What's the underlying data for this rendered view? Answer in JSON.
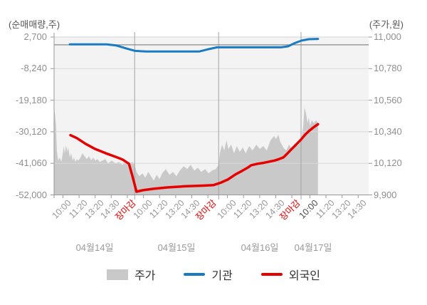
{
  "chart_data": {
    "type": "mixed",
    "title": "",
    "left_axis": {
      "title": "(순매매량,주)",
      "unit": "주",
      "max": 2700,
      "min": -52000,
      "ticks": [
        "2,700",
        "-8,240",
        "-19,180",
        "-30,120",
        "-41,060",
        "-52,000"
      ],
      "tick_values": [
        2700,
        -8240,
        -19180,
        -30120,
        -41060,
        -52000
      ],
      "zero_line": true
    },
    "right_axis": {
      "title": "(주가,원)",
      "unit": "원",
      "max": 11000,
      "min": 9900,
      "ticks": [
        "11,000",
        "10,780",
        "10,560",
        "10,340",
        "10,120",
        "9,900"
      ],
      "tick_values": [
        11000,
        10780,
        10560,
        10340,
        10120,
        9900
      ]
    },
    "x_axis": {
      "days": [
        {
          "label": "04월14일",
          "times": [
            "10:00",
            "11:20",
            "13:20",
            "14:30",
            "장마감"
          ]
        },
        {
          "label": "04월15일",
          "times": [
            "10:00",
            "11:20",
            "13:20",
            "14:30",
            "장마감"
          ]
        },
        {
          "label": "04월16일",
          "times": [
            "10:00",
            "11:20",
            "13:20",
            "14:30",
            "장마감"
          ]
        },
        {
          "label": "04월17일",
          "times": [
            "10:00",
            "11:20",
            "13:20",
            "14:30"
          ],
          "emphasized_time_index": 0
        }
      ],
      "close_time_label": "장마감",
      "time_label_color": "#979797",
      "close_label_color": "#e60000",
      "emphasized_label_color": "#4a4a4a"
    },
    "day_boundaries": [
      0.256,
      0.523,
      0.785
    ],
    "data_end": 0.839,
    "grid": true,
    "legend_position": "bottom",
    "series": [
      {
        "name": "주가",
        "type": "area",
        "axis": "right",
        "color": "#c9c9c9",
        "points": [
          [
            0.0,
            10500
          ],
          [
            0.003,
            10460
          ],
          [
            0.006,
            10380
          ],
          [
            0.009,
            10200
          ],
          [
            0.013,
            10140
          ],
          [
            0.018,
            10160
          ],
          [
            0.023,
            10130
          ],
          [
            0.027,
            10180
          ],
          [
            0.031,
            10240
          ],
          [
            0.034,
            10190
          ],
          [
            0.038,
            10245
          ],
          [
            0.042,
            10200
          ],
          [
            0.045,
            10230
          ],
          [
            0.05,
            10160
          ],
          [
            0.054,
            10190
          ],
          [
            0.059,
            10140
          ],
          [
            0.063,
            10160
          ],
          [
            0.068,
            10130
          ],
          [
            0.072,
            10150
          ],
          [
            0.077,
            10140
          ],
          [
            0.084,
            10160
          ],
          [
            0.09,
            10190
          ],
          [
            0.097,
            10170
          ],
          [
            0.104,
            10150
          ],
          [
            0.111,
            10170
          ],
          [
            0.118,
            10140
          ],
          [
            0.124,
            10160
          ],
          [
            0.131,
            10140
          ],
          [
            0.138,
            10150
          ],
          [
            0.145,
            10130
          ],
          [
            0.154,
            10140
          ],
          [
            0.163,
            10150
          ],
          [
            0.172,
            10120
          ],
          [
            0.183,
            10140
          ],
          [
            0.195,
            10120
          ],
          [
            0.206,
            10130
          ],
          [
            0.217,
            10110
          ],
          [
            0.229,
            10130
          ],
          [
            0.24,
            10120
          ],
          [
            0.249,
            10130
          ],
          [
            0.256,
            10110
          ],
          [
            0.262,
            10060
          ],
          [
            0.271,
            10030
          ],
          [
            0.281,
            10050
          ],
          [
            0.29,
            10020
          ],
          [
            0.299,
            10060
          ],
          [
            0.308,
            10030
          ],
          [
            0.317,
            10000
          ],
          [
            0.326,
            10040
          ],
          [
            0.335,
            10010
          ],
          [
            0.344,
            10050
          ],
          [
            0.355,
            10080
          ],
          [
            0.367,
            10040
          ],
          [
            0.378,
            10060
          ],
          [
            0.389,
            10030
          ],
          [
            0.4,
            10070
          ],
          [
            0.412,
            10100
          ],
          [
            0.423,
            10080
          ],
          [
            0.434,
            10110
          ],
          [
            0.446,
            10070
          ],
          [
            0.457,
            10090
          ],
          [
            0.468,
            10060
          ],
          [
            0.48,
            10080
          ],
          [
            0.491,
            10050
          ],
          [
            0.502,
            10070
          ],
          [
            0.514,
            10080
          ],
          [
            0.523,
            10110
          ],
          [
            0.527,
            10190
          ],
          [
            0.534,
            10250
          ],
          [
            0.541,
            10210
          ],
          [
            0.548,
            10280
          ],
          [
            0.554,
            10220
          ],
          [
            0.563,
            10250
          ],
          [
            0.572,
            10190
          ],
          [
            0.581,
            10240
          ],
          [
            0.59,
            10200
          ],
          [
            0.6,
            10230
          ],
          [
            0.609,
            10190
          ],
          [
            0.62,
            10240
          ],
          [
            0.631,
            10210
          ],
          [
            0.643,
            10250
          ],
          [
            0.654,
            10220
          ],
          [
            0.665,
            10240
          ],
          [
            0.676,
            10210
          ],
          [
            0.688,
            10280
          ],
          [
            0.699,
            10310
          ],
          [
            0.706,
            10290
          ],
          [
            0.713,
            10320
          ],
          [
            0.719,
            10270
          ],
          [
            0.729,
            10230
          ],
          [
            0.738,
            10210
          ],
          [
            0.747,
            10250
          ],
          [
            0.756,
            10220
          ],
          [
            0.765,
            10260
          ],
          [
            0.774,
            10240
          ],
          [
            0.783,
            10270
          ],
          [
            0.787,
            10300
          ],
          [
            0.792,
            10380
          ],
          [
            0.796,
            10510
          ],
          [
            0.801,
            10470
          ],
          [
            0.806,
            10400
          ],
          [
            0.81,
            10440
          ],
          [
            0.814,
            10380
          ],
          [
            0.819,
            10420
          ],
          [
            0.826,
            10400
          ],
          [
            0.833,
            10420
          ],
          [
            0.839,
            10400
          ]
        ]
      },
      {
        "name": "기관",
        "type": "line",
        "axis": "left",
        "color": "#1a7ac2",
        "points": [
          [
            0.05,
            150
          ],
          [
            0.167,
            150
          ],
          [
            0.197,
            -200
          ],
          [
            0.231,
            -1300
          ],
          [
            0.258,
            -2100
          ],
          [
            0.292,
            -2300
          ],
          [
            0.462,
            -2300
          ],
          [
            0.495,
            -1400
          ],
          [
            0.518,
            -850
          ],
          [
            0.722,
            -850
          ],
          [
            0.744,
            -500
          ],
          [
            0.767,
            700
          ],
          [
            0.787,
            1500
          ],
          [
            0.81,
            1950
          ],
          [
            0.839,
            2050
          ]
        ]
      },
      {
        "name": "외국인",
        "type": "line",
        "axis": "left",
        "color": "#e60000",
        "points": [
          [
            0.052,
            -31300
          ],
          [
            0.072,
            -32300
          ],
          [
            0.1,
            -34300
          ],
          [
            0.129,
            -36000
          ],
          [
            0.163,
            -37500
          ],
          [
            0.195,
            -38800
          ],
          [
            0.217,
            -39700
          ],
          [
            0.238,
            -41200
          ],
          [
            0.249,
            -45500
          ],
          [
            0.262,
            -50900
          ],
          [
            0.281,
            -50400
          ],
          [
            0.314,
            -49900
          ],
          [
            0.36,
            -49400
          ],
          [
            0.416,
            -49000
          ],
          [
            0.473,
            -48800
          ],
          [
            0.507,
            -48600
          ],
          [
            0.529,
            -47800
          ],
          [
            0.552,
            -46700
          ],
          [
            0.577,
            -44900
          ],
          [
            0.597,
            -43700
          ],
          [
            0.615,
            -42600
          ],
          [
            0.627,
            -41700
          ],
          [
            0.647,
            -41200
          ],
          [
            0.665,
            -40900
          ],
          [
            0.683,
            -40500
          ],
          [
            0.701,
            -40100
          ],
          [
            0.715,
            -39600
          ],
          [
            0.729,
            -39000
          ],
          [
            0.742,
            -37600
          ],
          [
            0.756,
            -36000
          ],
          [
            0.771,
            -34400
          ],
          [
            0.785,
            -32800
          ],
          [
            0.799,
            -31000
          ],
          [
            0.812,
            -29700
          ],
          [
            0.826,
            -28500
          ],
          [
            0.839,
            -27500
          ]
        ]
      }
    ],
    "colors": {
      "plot_background": "#f3f3f3",
      "gridline": "#d9d9d9",
      "day_boundary_line": "#a3a3a3",
      "zero_line": "#8a8a8a",
      "axis_line": "#999999"
    }
  },
  "legend": {
    "items": [
      {
        "label": "주가",
        "swatch": "area-swatch"
      },
      {
        "label": "기관",
        "swatch": "line-swatch"
      },
      {
        "label": "외국인",
        "swatch": "line-swatch"
      }
    ]
  }
}
